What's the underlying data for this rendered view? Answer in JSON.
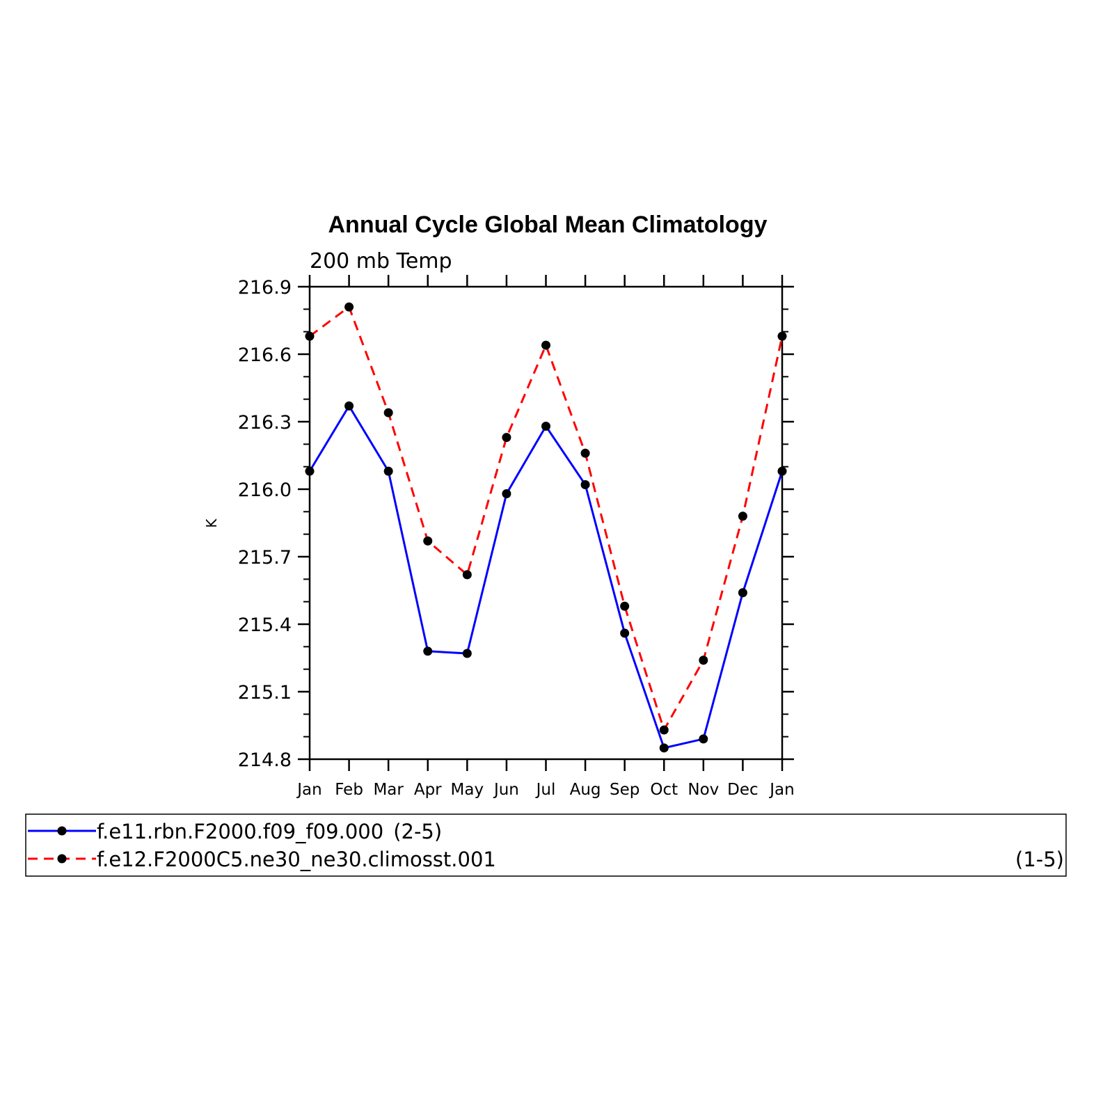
{
  "chart_data": {
    "type": "line",
    "title": "Annual Cycle Global Mean Climatology",
    "subtitle": "200 mb Temp",
    "xlabel": "",
    "ylabel": "K",
    "categories": [
      "Jan",
      "Feb",
      "Mar",
      "Apr",
      "May",
      "Jun",
      "Jul",
      "Aug",
      "Sep",
      "Oct",
      "Nov",
      "Dec",
      "Jan"
    ],
    "ylim": [
      214.8,
      216.9
    ],
    "yticks": [
      "216.9",
      "216.6",
      "216.3",
      "216.0",
      "215.7",
      "215.4",
      "215.1",
      "214.8"
    ],
    "ytick_values": [
      216.9,
      216.6,
      216.3,
      216.0,
      215.7,
      215.4,
      215.1,
      214.8
    ],
    "grid": false,
    "legend_position": "bottom",
    "series": [
      {
        "name": "f.e11.rbn.F2000.f09_f09.000",
        "range_label": "(2-5)",
        "color": "#0000ff",
        "dash": "solid",
        "values": [
          216.08,
          216.37,
          216.08,
          215.28,
          215.27,
          215.98,
          216.28,
          216.02,
          215.36,
          214.85,
          214.89,
          215.54,
          216.08
        ]
      },
      {
        "name": "f.e12.F2000C5.ne30_ne30.climosst.001",
        "range_label": "(1-5)",
        "color": "#ff0000",
        "dash": "dashed",
        "values": [
          216.68,
          216.81,
          216.34,
          215.77,
          215.62,
          216.23,
          216.64,
          216.16,
          215.48,
          214.93,
          215.24,
          215.88,
          216.68
        ]
      }
    ]
  }
}
